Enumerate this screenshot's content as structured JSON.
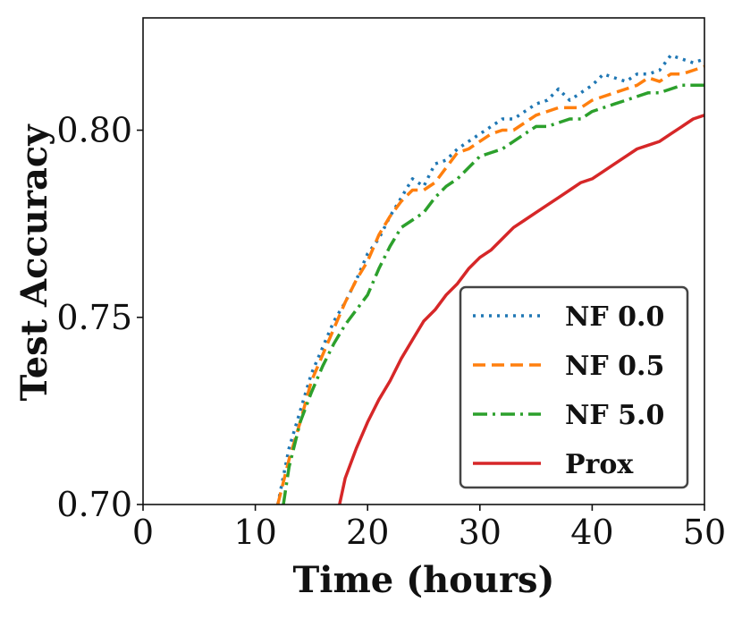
{
  "chart_data": {
    "type": "line",
    "xlabel": "Time (hours)",
    "ylabel": "Test Accuracy",
    "xlim": [
      0,
      50
    ],
    "ylim": [
      0.7,
      0.83
    ],
    "x_ticks": [
      0,
      10,
      20,
      30,
      40,
      50
    ],
    "x_tick_labels": [
      "0",
      "10",
      "20",
      "30",
      "40",
      "50"
    ],
    "y_ticks": [
      0.7,
      0.75,
      0.8
    ],
    "y_tick_labels": [
      "0.70",
      "0.75",
      "0.80"
    ],
    "grid": false,
    "legend_position": "lower-right",
    "series": [
      {
        "name": "NF 0.0",
        "color": "#1f77b4",
        "style": "dotted",
        "x": [
          12,
          13,
          14,
          15,
          16,
          17,
          18,
          19,
          20,
          21,
          22,
          23,
          24,
          25,
          26,
          27,
          28,
          29,
          30,
          31,
          32,
          33,
          34,
          35,
          36,
          37,
          38,
          39,
          40,
          41,
          42,
          43,
          44,
          45,
          46,
          47,
          48,
          49,
          50
        ],
        "y": [
          0.7,
          0.715,
          0.725,
          0.735,
          0.742,
          0.749,
          0.754,
          0.76,
          0.767,
          0.771,
          0.777,
          0.782,
          0.787,
          0.785,
          0.791,
          0.792,
          0.795,
          0.797,
          0.799,
          0.801,
          0.803,
          0.803,
          0.805,
          0.807,
          0.808,
          0.811,
          0.808,
          0.81,
          0.812,
          0.815,
          0.814,
          0.813,
          0.815,
          0.815,
          0.816,
          0.82,
          0.819,
          0.818,
          0.819
        ]
      },
      {
        "name": "NF 0.5",
        "color": "#ff7f0e",
        "style": "dashed",
        "x": [
          12,
          13,
          14,
          15,
          16,
          17,
          18,
          19,
          20,
          21,
          22,
          23,
          24,
          25,
          26,
          27,
          28,
          29,
          30,
          31,
          32,
          33,
          34,
          35,
          36,
          37,
          38,
          39,
          40,
          41,
          42,
          43,
          44,
          45,
          46,
          47,
          48,
          49,
          50
        ],
        "y": [
          0.7,
          0.712,
          0.722,
          0.733,
          0.74,
          0.747,
          0.754,
          0.76,
          0.765,
          0.772,
          0.777,
          0.781,
          0.784,
          0.784,
          0.786,
          0.79,
          0.794,
          0.795,
          0.797,
          0.799,
          0.8,
          0.8,
          0.802,
          0.804,
          0.805,
          0.806,
          0.806,
          0.806,
          0.808,
          0.809,
          0.81,
          0.811,
          0.812,
          0.814,
          0.813,
          0.815,
          0.815,
          0.816,
          0.817
        ]
      },
      {
        "name": "NF 5.0",
        "color": "#2ca02c",
        "style": "dashdot",
        "x": [
          12.5,
          13,
          14,
          15,
          16,
          17,
          18,
          19,
          20,
          21,
          22,
          23,
          24,
          25,
          26,
          27,
          28,
          29,
          30,
          31,
          32,
          33,
          34,
          35,
          36,
          37,
          38,
          39,
          40,
          41,
          42,
          43,
          44,
          45,
          46,
          47,
          48,
          49,
          50
        ],
        "y": [
          0.7,
          0.71,
          0.722,
          0.73,
          0.737,
          0.743,
          0.748,
          0.752,
          0.756,
          0.763,
          0.769,
          0.774,
          0.776,
          0.778,
          0.782,
          0.785,
          0.787,
          0.79,
          0.793,
          0.794,
          0.795,
          0.797,
          0.799,
          0.801,
          0.801,
          0.802,
          0.803,
          0.803,
          0.805,
          0.806,
          0.807,
          0.808,
          0.809,
          0.81,
          0.81,
          0.811,
          0.812,
          0.812,
          0.812
        ]
      },
      {
        "name": "Prox",
        "color": "#d62728",
        "style": "solid",
        "x": [
          17.5,
          18,
          19,
          20,
          21,
          22,
          23,
          24,
          25,
          26,
          27,
          28,
          29,
          30,
          31,
          32,
          33,
          34,
          35,
          36,
          37,
          38,
          39,
          40,
          41,
          42,
          43,
          44,
          45,
          46,
          47,
          48,
          49,
          50
        ],
        "y": [
          0.7,
          0.707,
          0.715,
          0.722,
          0.728,
          0.733,
          0.739,
          0.744,
          0.749,
          0.752,
          0.756,
          0.759,
          0.763,
          0.766,
          0.768,
          0.771,
          0.774,
          0.776,
          0.778,
          0.78,
          0.782,
          0.784,
          0.786,
          0.787,
          0.789,
          0.791,
          0.793,
          0.795,
          0.796,
          0.797,
          0.799,
          0.801,
          0.803,
          0.804
        ]
      }
    ]
  }
}
